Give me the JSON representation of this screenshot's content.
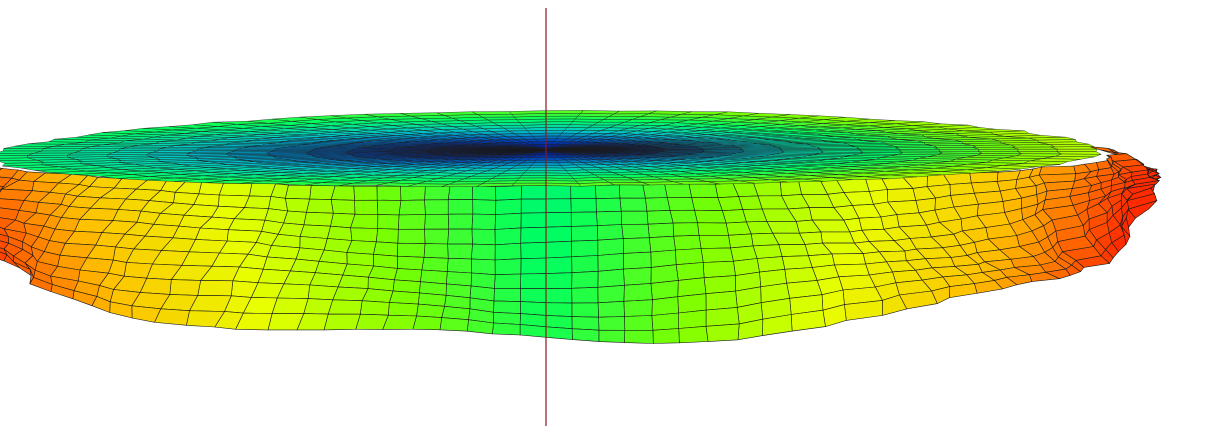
{
  "viewer": {
    "background_color": "#ffffff",
    "axis_color": "#8b1a1a",
    "mesh_line_color": "#1a1a1a",
    "colormap": [
      "#00006e",
      "#0038b8",
      "#00c8c8",
      "#00ff60",
      "#7cff00",
      "#e8ff00",
      "#ffc000",
      "#ff2a00"
    ],
    "colormap_name": "jet",
    "mesh": {
      "angular_segments": 96,
      "top_rings": 14,
      "side_rows": 11
    }
  }
}
